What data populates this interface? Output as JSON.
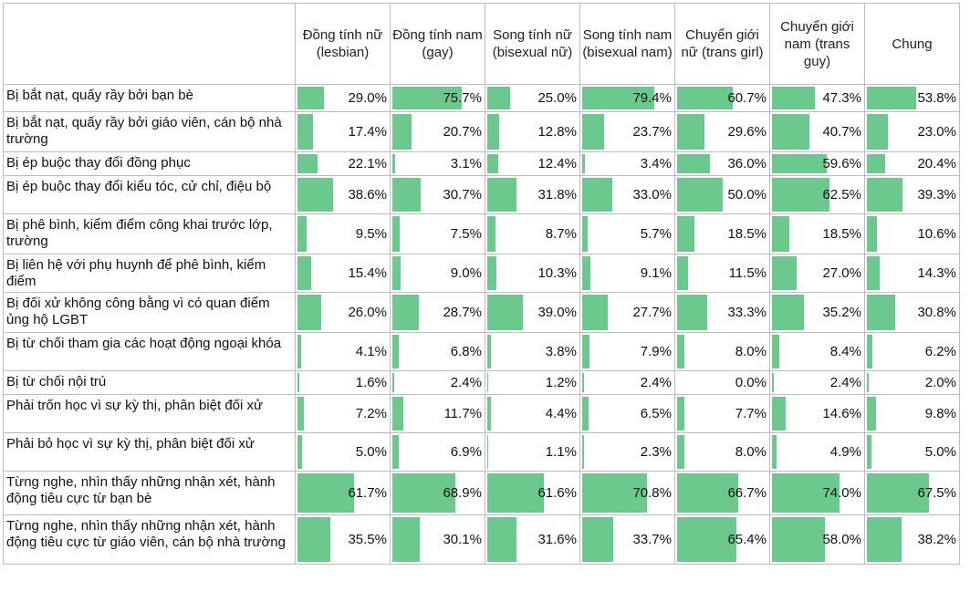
{
  "chart_data": {
    "type": "table",
    "value_format": "percent",
    "columns": [
      "Đồng tính nữ (lesbian)",
      "Đồng tính nam (gay)",
      "Song tính nữ (bisexual nữ)",
      "Song tính nam (bisexual nam)",
      "Chuyển giới nữ (trans girl)",
      "Chuyển giới nam (trans guy)",
      "Chung"
    ],
    "rows": [
      {
        "label": "Bị bắt nạt, quấy rầy bởi bạn bè",
        "values": [
          29.0,
          75.7,
          25.0,
          79.4,
          60.7,
          47.3,
          53.8
        ]
      },
      {
        "label": "Bị bắt nạt, quấy rầy bởi giáo viên, cán bộ nhà trường",
        "values": [
          17.4,
          20.7,
          12.8,
          23.7,
          29.6,
          40.7,
          23.0
        ]
      },
      {
        "label": "Bị ép buộc thay đổi đồng phục",
        "values": [
          22.1,
          3.1,
          12.4,
          3.4,
          36.0,
          59.6,
          20.4
        ]
      },
      {
        "label": "Bị ép buộc thay đổi kiểu tóc, cử chỉ, điệu bộ",
        "values": [
          38.6,
          30.7,
          31.8,
          33.0,
          50.0,
          62.5,
          39.3
        ]
      },
      {
        "label": "Bị phê bình, kiểm điểm công khai trước lớp, trường",
        "values": [
          9.5,
          7.5,
          8.7,
          5.7,
          18.5,
          18.5,
          10.6
        ]
      },
      {
        "label": "Bị liên hệ với phụ huynh để phê bình, kiểm điểm",
        "values": [
          15.4,
          9.0,
          10.3,
          9.1,
          11.5,
          27.0,
          14.3
        ]
      },
      {
        "label": "Bị đối xử không công bằng vì có quan điểm ủng hộ LGBT",
        "values": [
          26.0,
          28.7,
          39.0,
          27.7,
          33.3,
          35.2,
          30.8
        ]
      },
      {
        "label": "Bị từ chối tham gia các hoạt động ngoại khóa",
        "values": [
          4.1,
          6.8,
          3.8,
          7.9,
          8.0,
          8.4,
          6.2
        ]
      },
      {
        "label": "Bị từ chối nội trú",
        "values": [
          1.6,
          2.4,
          1.2,
          2.4,
          0.0,
          2.4,
          2.0
        ]
      },
      {
        "label": "Phải trốn học vì sự kỳ thị, phân biệt đối xử",
        "values": [
          7.2,
          11.7,
          4.4,
          6.5,
          7.7,
          14.6,
          9.8
        ]
      },
      {
        "label": "Phải bỏ học vì sự kỳ thị, phân biệt đối xử",
        "values": [
          5.0,
          6.9,
          1.1,
          2.3,
          8.0,
          4.9,
          5.0
        ]
      },
      {
        "label": "Từng nghe, nhìn thấy những nhận xét, hành động tiêu cực từ bạn bè",
        "values": [
          61.7,
          68.9,
          61.6,
          70.8,
          66.7,
          74.0,
          67.5
        ]
      },
      {
        "label": "Từng nghe, nhìn thấy những nhận xét, hành động tiêu cực từ giáo viên, cán bộ nhà trường",
        "values": [
          35.5,
          30.1,
          31.6,
          33.7,
          65.4,
          58.0,
          38.2
        ]
      }
    ],
    "bar_color": "#6cc98e"
  }
}
